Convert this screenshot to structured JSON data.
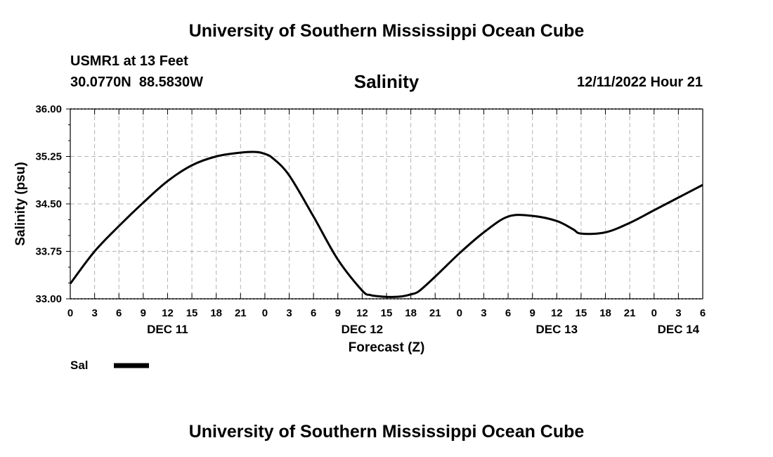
{
  "header": {
    "title": "University of Southern Mississippi Ocean Cube",
    "station": "USMR1 at 13 Feet",
    "coords": "30.0770N  88.5830W",
    "variable": "Salinity",
    "timestamp": "12/11/2022 Hour 21"
  },
  "footer": {
    "title": "University of Southern Mississippi Ocean Cube"
  },
  "chart_data": {
    "type": "line",
    "title": "Salinity",
    "xlabel": "Forecast (Z)",
    "ylabel": "Salinity (psu)",
    "ylim": [
      33.0,
      36.0
    ],
    "yticks": [
      "33.00",
      "33.75",
      "34.50",
      "35.25",
      "36.00"
    ],
    "ytick_values": [
      33.0,
      33.75,
      34.5,
      35.25,
      36.0
    ],
    "xlim_hours": [
      0,
      78
    ],
    "x_unit": "hours from DEC 11 00Z",
    "xtick_hours": [
      0,
      3,
      6,
      9,
      12,
      15,
      18,
      21,
      24,
      27,
      30,
      33,
      36,
      39,
      42,
      45,
      48,
      51,
      54,
      57,
      60,
      63,
      66,
      69,
      72,
      75,
      78
    ],
    "xtick_labels": [
      "0",
      "3",
      "6",
      "9",
      "12",
      "15",
      "18",
      "21",
      "0",
      "3",
      "6",
      "9",
      "12",
      "15",
      "18",
      "21",
      "0",
      "3",
      "6",
      "9",
      "12",
      "15",
      "18",
      "21",
      "0",
      "3",
      "6"
    ],
    "day_labels": [
      {
        "text": "DEC 11",
        "hour": 12
      },
      {
        "text": "DEC 12",
        "hour": 36
      },
      {
        "text": "DEC 13",
        "hour": 60
      },
      {
        "text": "DEC 14",
        "hour": 75
      }
    ],
    "grid": true,
    "legend": [
      {
        "name": "Sal",
        "color": "#000000"
      }
    ],
    "series": [
      {
        "name": "Sal",
        "color": "#000000",
        "x": [
          0,
          3,
          6,
          9,
          12,
          15,
          18,
          21,
          23,
          24,
          25,
          27,
          30,
          33,
          36,
          37,
          38,
          39,
          40,
          41,
          42,
          43,
          45,
          48,
          51,
          54,
          57,
          60,
          62,
          63,
          66,
          69,
          72,
          75,
          78
        ],
        "y": [
          33.24,
          33.75,
          34.15,
          34.52,
          34.86,
          35.11,
          35.25,
          35.31,
          35.32,
          35.29,
          35.22,
          34.95,
          34.3,
          33.62,
          33.13,
          33.06,
          33.04,
          33.03,
          33.03,
          33.04,
          33.07,
          33.12,
          33.35,
          33.72,
          34.05,
          34.3,
          34.31,
          34.23,
          34.1,
          34.03,
          34.05,
          34.2,
          34.4,
          34.6,
          34.8
        ]
      }
    ]
  }
}
